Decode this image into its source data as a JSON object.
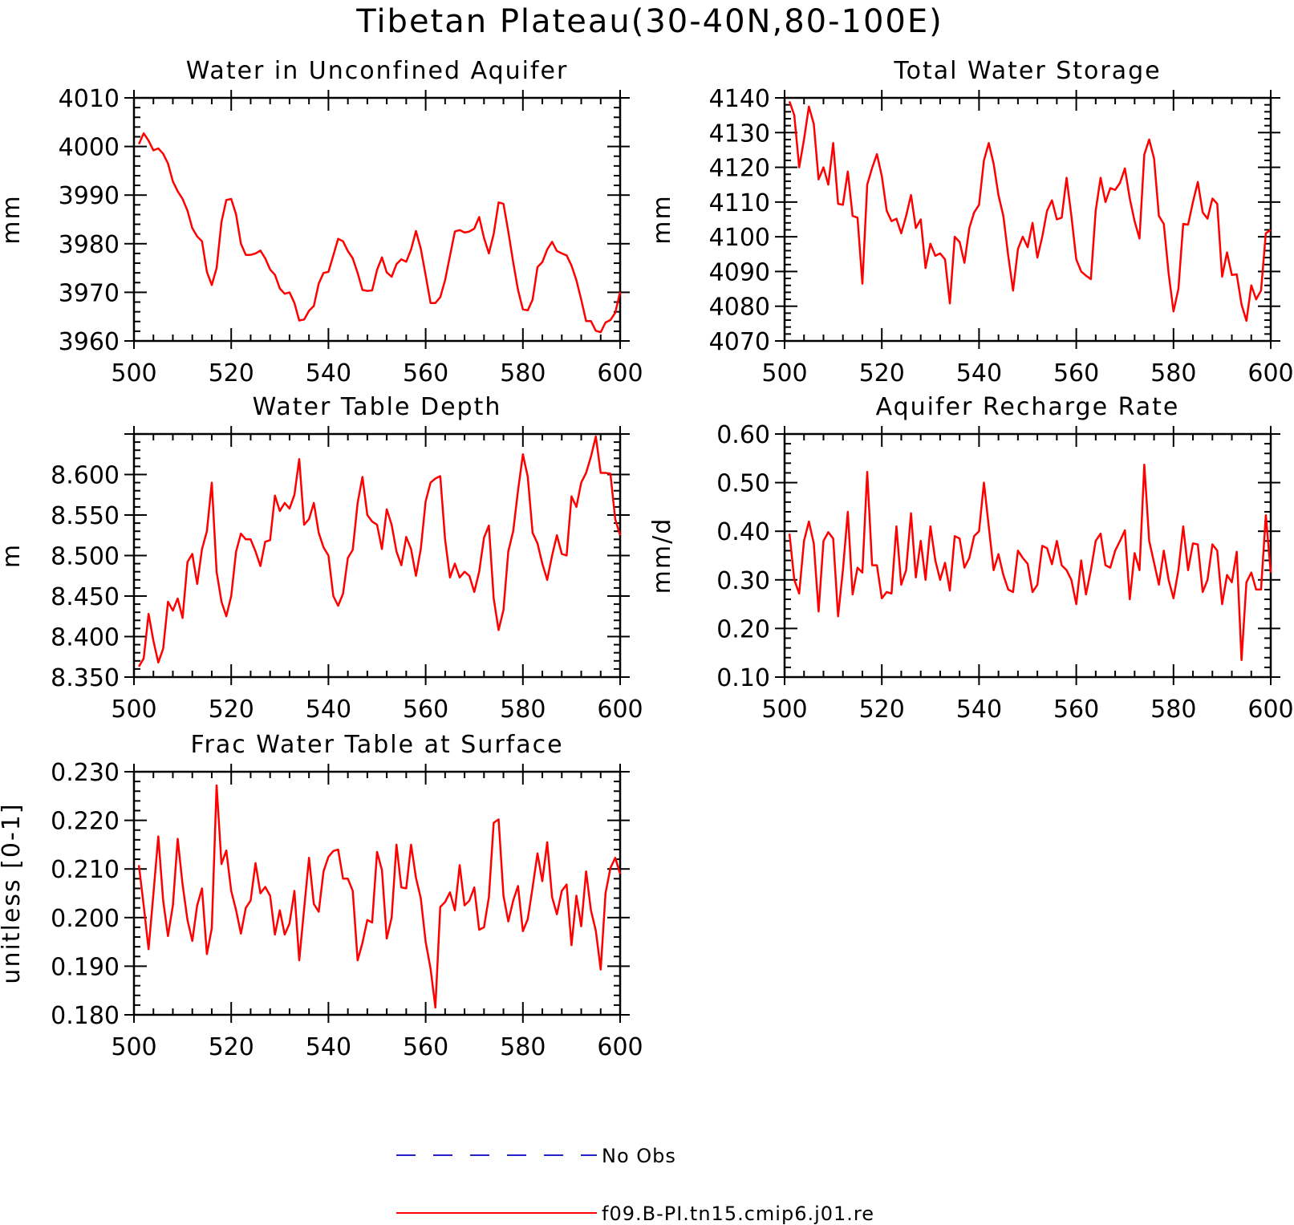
{
  "title": "Tibetan Plateau(30-40N,80-100E)",
  "legend": [
    {
      "label": "No Obs",
      "color": "#2222cc",
      "style": "dashed"
    },
    {
      "label": "f09.B-PI.tn15.cmip6.j01.re",
      "color": "#ff0000",
      "style": "solid"
    }
  ],
  "chart_data": [
    {
      "type": "line",
      "title": "Water in Unconfined Aquifer",
      "ylabel": "mm",
      "xlim": [
        500,
        600
      ],
      "ylim": [
        3960,
        4010
      ],
      "xticks": [
        "500",
        "520",
        "540",
        "560",
        "580",
        "600"
      ],
      "yticks": [
        "3960",
        "3970",
        "3980",
        "3990",
        "4000",
        "4010"
      ],
      "x_start": 501,
      "series": [
        {
          "name": "f09.B-PI.tn15.cmip6.j01.re",
          "color": "#ff0000",
          "values": [
            4000.5,
            4002.7,
            4001.2,
            3999.2,
            3999.6,
            3998.5,
            3996.5,
            3992.8,
            3990.8,
            3989.2,
            3986.8,
            3983.2,
            3981.5,
            3980.5,
            3974.2,
            3971.5,
            3975,
            3984.5,
            3989,
            3989.2,
            3986,
            3980,
            3977.7,
            3977.7,
            3978,
            3978.6,
            3977,
            3974.7,
            3973.6,
            3970.8,
            3969.7,
            3970,
            3967.8,
            3964.2,
            3964.4,
            3966.2,
            3967.2,
            3971.8,
            3974,
            3974.2,
            3977.6,
            3981,
            3980.5,
            3978.5,
            3977,
            3974,
            3970.5,
            3970.3,
            3970.4,
            3974.6,
            3977.2,
            3974.1,
            3973.2,
            3975.8,
            3976.8,
            3976.3,
            3978.8,
            3982.6,
            3979,
            3973.5,
            3967.8,
            3967.8,
            3969,
            3972.5,
            3977.5,
            3982.5,
            3982.8,
            3982.3,
            3982.5,
            3983.1,
            3985.5,
            3981.2,
            3978,
            3982,
            3988.5,
            3988.2,
            3982.5,
            3976.2,
            3970.5,
            3966.5,
            3966.3,
            3968.5,
            3975.2,
            3976.2,
            3978.8,
            3980.4,
            3978.5,
            3978,
            3977.6,
            3975.5,
            3972.5,
            3968.5,
            3964.1,
            3964.1,
            3962.1,
            3961.8,
            3963.8,
            3964.3,
            3965.8,
            3970.1
          ]
        }
      ]
    },
    {
      "type": "line",
      "title": "Total Water Storage",
      "ylabel": "mm",
      "xlim": [
        500,
        600
      ],
      "ylim": [
        4070,
        4140
      ],
      "xticks": [
        "500",
        "520",
        "540",
        "560",
        "580",
        "600"
      ],
      "yticks": [
        "4070",
        "4080",
        "4090",
        "4100",
        "4110",
        "4120",
        "4130",
        "4140"
      ],
      "x_start": 501,
      "series": [
        {
          "name": "f09.B-PI.tn15.cmip6.j01.re",
          "color": "#ff0000",
          "values": [
            4139,
            4135,
            4120,
            4128,
            4137.5,
            4132.5,
            4116.5,
            4120,
            4115,
            4127,
            4109.5,
            4109.2,
            4118.8,
            4106,
            4105.5,
            4086.5,
            4115,
            4119.8,
            4123.8,
            4117.5,
            4107.5,
            4104.5,
            4105.2,
            4101,
            4106,
            4112,
            4102.5,
            4105,
            4091,
            4098,
            4094.5,
            4095.2,
            4093.5,
            4080.8,
            4100,
            4098.5,
            4092.5,
            4102.5,
            4107,
            4109.2,
            4122,
            4127,
            4121,
            4112,
            4106,
            4094.5,
            4084.5,
            4096.5,
            4100,
            4097,
            4104,
            4094,
            4100,
            4107.5,
            4110.5,
            4105,
            4105.5,
            4117,
            4106,
            4093.5,
            4090,
            4088.8,
            4087.8,
            4107.5,
            4117,
            4110,
            4114,
            4113.5,
            4115.5,
            4119.7,
            4111,
            4104.5,
            4099.5,
            4123.7,
            4128,
            4122.5,
            4106,
            4103.7,
            4089.5,
            4078.5,
            4085,
            4103.7,
            4103.5,
            4110,
            4115.8,
            4107,
            4105.2,
            4111,
            4109.5,
            4088.5,
            4095.5,
            4089,
            4089.2,
            4080.5,
            4075.8,
            4086,
            4082,
            4084.5,
            4101,
            4102
          ]
        }
      ]
    },
    {
      "type": "line",
      "title": "Water Table Depth",
      "ylabel": "m",
      "xlim": [
        500,
        600
      ],
      "ylim": [
        8.35,
        8.65
      ],
      "xticks": [
        "500",
        "520",
        "540",
        "560",
        "580",
        "600"
      ],
      "yticks": [
        "8.350",
        "8.400",
        "8.450",
        "8.500",
        "8.550",
        "8.600"
      ],
      "x_start": 501,
      "series": [
        {
          "name": "f09.B-PI.tn15.cmip6.j01.re",
          "color": "#ff0000",
          "values": [
            8.363,
            8.373,
            8.428,
            8.395,
            8.368,
            8.385,
            8.443,
            8.432,
            8.447,
            8.423,
            8.492,
            8.502,
            8.465,
            8.508,
            8.53,
            8.59,
            8.48,
            8.443,
            8.425,
            8.45,
            8.505,
            8.527,
            8.52,
            8.52,
            8.505,
            8.487,
            8.517,
            8.519,
            8.574,
            8.555,
            8.565,
            8.558,
            8.575,
            8.619,
            8.538,
            8.545,
            8.565,
            8.528,
            8.51,
            8.5,
            8.45,
            8.438,
            8.453,
            8.497,
            8.507,
            8.565,
            8.597,
            8.55,
            8.542,
            8.538,
            8.508,
            8.557,
            8.538,
            8.505,
            8.488,
            8.523,
            8.508,
            8.475,
            8.508,
            8.567,
            8.59,
            8.595,
            8.598,
            8.52,
            8.473,
            8.49,
            8.473,
            8.48,
            8.475,
            8.455,
            8.48,
            8.522,
            8.537,
            8.447,
            8.408,
            8.433,
            8.505,
            8.53,
            8.58,
            8.625,
            8.597,
            8.528,
            8.515,
            8.49,
            8.47,
            8.5,
            8.525,
            8.502,
            8.5,
            8.573,
            8.56,
            8.59,
            8.602,
            8.622,
            8.647,
            8.602,
            8.602,
            8.601,
            8.545,
            8.525
          ]
        }
      ]
    },
    {
      "type": "line",
      "title": "Aquifer Recharge Rate",
      "ylabel": "mm/d",
      "xlim": [
        500,
        600
      ],
      "ylim": [
        0.1,
        0.6
      ],
      "xticks": [
        "500",
        "520",
        "540",
        "560",
        "580",
        "600"
      ],
      "yticks": [
        "0.10",
        "0.20",
        "0.30",
        "0.40",
        "0.50",
        "0.60"
      ],
      "x_start": 501,
      "series": [
        {
          "name": "f09.B-PI.tn15.cmip6.j01.re",
          "color": "#ff0000",
          "values": [
            0.395,
            0.3,
            0.272,
            0.38,
            0.42,
            0.375,
            0.235,
            0.38,
            0.398,
            0.385,
            0.225,
            0.32,
            0.44,
            0.27,
            0.325,
            0.315,
            0.522,
            0.33,
            0.33,
            0.262,
            0.275,
            0.272,
            0.41,
            0.29,
            0.32,
            0.437,
            0.305,
            0.38,
            0.3,
            0.41,
            0.34,
            0.3,
            0.335,
            0.278,
            0.39,
            0.385,
            0.325,
            0.345,
            0.39,
            0.4,
            0.5,
            0.41,
            0.32,
            0.353,
            0.31,
            0.28,
            0.275,
            0.36,
            0.345,
            0.333,
            0.275,
            0.29,
            0.37,
            0.365,
            0.332,
            0.38,
            0.33,
            0.32,
            0.3,
            0.25,
            0.34,
            0.27,
            0.32,
            0.38,
            0.395,
            0.33,
            0.325,
            0.36,
            0.38,
            0.402,
            0.26,
            0.355,
            0.32,
            0.537,
            0.38,
            0.335,
            0.29,
            0.36,
            0.3,
            0.262,
            0.32,
            0.41,
            0.32,
            0.375,
            0.373,
            0.275,
            0.3,
            0.373,
            0.36,
            0.25,
            0.31,
            0.295,
            0.358,
            0.135,
            0.295,
            0.315,
            0.28,
            0.28,
            0.433,
            0.315
          ]
        }
      ]
    },
    {
      "type": "line",
      "title": "Frac Water Table at Surface",
      "ylabel": "unitless [0-1]",
      "xlim": [
        500,
        600
      ],
      "ylim": [
        0.18,
        0.23
      ],
      "xticks": [
        "500",
        "520",
        "540",
        "560",
        "580",
        "600"
      ],
      "yticks": [
        "0.180",
        "0.190",
        "0.200",
        "0.210",
        "0.220",
        "0.230"
      ],
      "x_start": 501,
      "series": [
        {
          "name": "f09.B-PI.tn15.cmip6.j01.re",
          "color": "#ff0000",
          "values": [
            0.2108,
            0.2025,
            0.1935,
            0.2048,
            0.2167,
            0.2035,
            0.1962,
            0.2025,
            0.2162,
            0.2068,
            0.1995,
            0.1952,
            0.2025,
            0.206,
            0.1925,
            0.1978,
            0.2272,
            0.211,
            0.2138,
            0.2055,
            0.2015,
            0.1967,
            0.202,
            0.2035,
            0.2112,
            0.205,
            0.2063,
            0.2045,
            0.1965,
            0.2015,
            0.1965,
            0.1988,
            0.2055,
            0.1912,
            0.2018,
            0.2123,
            0.2028,
            0.2012,
            0.2095,
            0.2125,
            0.2137,
            0.214,
            0.208,
            0.208,
            0.2055,
            0.1912,
            0.1948,
            0.1995,
            0.199,
            0.2135,
            0.2098,
            0.1957,
            0.2,
            0.215,
            0.2062,
            0.206,
            0.215,
            0.2082,
            0.204,
            0.195,
            0.1895,
            0.1815,
            0.2022,
            0.2032,
            0.2052,
            0.2015,
            0.2108,
            0.2025,
            0.2035,
            0.2062,
            0.1975,
            0.198,
            0.2042,
            0.2195,
            0.2202,
            0.2045,
            0.1992,
            0.2035,
            0.2065,
            0.1972,
            0.1997,
            0.2062,
            0.2132,
            0.2075,
            0.2155,
            0.2042,
            0.2007,
            0.2055,
            0.2068,
            0.1943,
            0.2045,
            0.1982,
            0.2095,
            0.2015,
            0.1973,
            0.1893,
            0.205,
            0.2102,
            0.2123,
            0.209
          ]
        }
      ]
    }
  ]
}
